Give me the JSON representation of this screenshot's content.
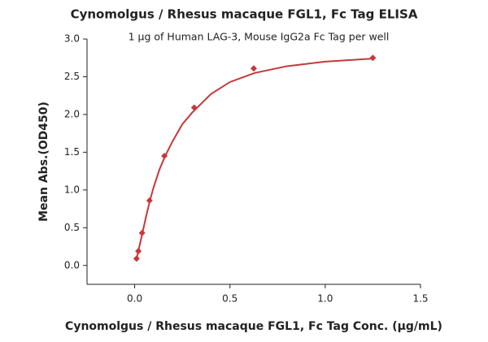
{
  "chart_data": {
    "type": "scatter",
    "title": "Cynomolgus / Rhesus macaque FGL1, Fc Tag ELISA",
    "subtitle": "1 µg of Human LAG-3, Mouse IgG2a Fc Tag per well",
    "x_label": "Cynomolgus / Rhesus macaque FGL1, Fc Tag Conc. (µg/mL)",
    "y_label": "Mean Abs.(OD450)",
    "color": "#c8373a",
    "points": {
      "x": [
        0.0098,
        0.0195,
        0.039,
        0.078,
        0.156,
        0.3125,
        0.625,
        1.25
      ],
      "y": [
        0.09,
        0.19,
        0.43,
        0.86,
        1.45,
        2.09,
        2.61,
        2.75
      ]
    },
    "fit": {
      "x": [
        0.0098,
        0.02,
        0.04,
        0.06,
        0.08,
        0.1,
        0.13,
        0.16,
        0.2,
        0.25,
        0.3,
        0.4,
        0.5,
        0.63,
        0.8,
        1.0,
        1.25
      ],
      "y": [
        0.08,
        0.2,
        0.42,
        0.65,
        0.86,
        1.04,
        1.27,
        1.45,
        1.65,
        1.87,
        2.02,
        2.27,
        2.43,
        2.55,
        2.64,
        2.7,
        2.74
      ]
    },
    "xlim": [
      -0.25,
      1.5
    ],
    "xticks": [
      {
        "value": 0,
        "label": "0.0"
      },
      0.5,
      {
        "value": 1,
        "label": "1.0"
      },
      1.5
    ],
    "ylim": [
      -0.25,
      3.0
    ],
    "yticks": [
      {
        "value": 0,
        "label": "0.0"
      },
      0.5,
      {
        "value": 1,
        "label": "1.0"
      },
      1.5,
      {
        "value": 2,
        "label": "2.0"
      },
      2.5,
      {
        "value": 3,
        "label": "3.0"
      }
    ],
    "grid": false
  }
}
